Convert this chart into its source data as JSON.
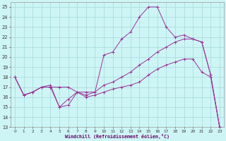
{
  "xlabel": "Windchill (Refroidissement éolien,°C)",
  "bg_color": "#cef5f5",
  "grid_color": "#aadddd",
  "line_color": "#993399",
  "xlim": [
    -0.5,
    23.5
  ],
  "ylim": [
    13,
    25.5
  ],
  "xticks": [
    0,
    1,
    2,
    3,
    4,
    5,
    6,
    7,
    8,
    9,
    10,
    11,
    12,
    13,
    14,
    15,
    16,
    17,
    18,
    19,
    20,
    21,
    22,
    23
  ],
  "yticks": [
    13,
    14,
    15,
    16,
    17,
    18,
    19,
    20,
    21,
    22,
    23,
    24,
    25
  ],
  "line1_x": [
    0,
    1,
    2,
    3,
    4,
    5,
    6,
    7,
    8,
    9,
    10,
    11,
    12,
    13,
    14,
    15,
    16,
    17,
    18,
    19,
    20,
    21,
    22,
    23
  ],
  "line1_y": [
    18,
    16.2,
    16.5,
    17.0,
    17.0,
    17.0,
    17.0,
    16.5,
    16.5,
    16.5,
    17.2,
    17.5,
    18.0,
    18.5,
    19.2,
    19.8,
    20.5,
    21.0,
    21.5,
    21.8,
    21.8,
    21.5,
    18.2,
    13.0
  ],
  "line2_x": [
    0,
    1,
    2,
    3,
    4,
    5,
    6,
    7,
    8,
    9,
    10,
    11,
    12,
    13,
    14,
    15,
    16,
    17,
    18,
    19,
    20,
    21,
    22,
    23
  ],
  "line2_y": [
    18,
    16.2,
    16.5,
    17.0,
    17.2,
    15.0,
    15.8,
    16.5,
    16.2,
    16.5,
    20.2,
    20.5,
    21.8,
    22.5,
    24.0,
    25.0,
    25.0,
    23.0,
    22.0,
    22.2,
    21.8,
    21.5,
    18.2,
    13.0
  ],
  "line3_x": [
    0,
    1,
    2,
    3,
    4,
    5,
    6,
    7,
    8,
    9,
    10,
    11,
    12,
    13,
    14,
    15,
    16,
    17,
    18,
    19,
    20,
    21,
    22,
    23
  ],
  "line3_y": [
    18,
    16.2,
    16.5,
    17.0,
    17.0,
    15.0,
    15.2,
    16.5,
    16.0,
    16.2,
    16.5,
    16.8,
    17.0,
    17.2,
    17.5,
    18.2,
    18.8,
    19.2,
    19.5,
    19.8,
    19.8,
    18.5,
    18.0,
    13.0
  ]
}
